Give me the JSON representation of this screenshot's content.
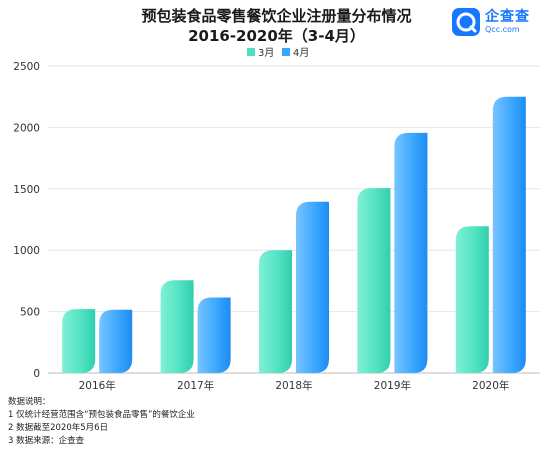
{
  "title": "预包装食品零售餐饮企业注册量分布情况",
  "subtitle": "2016-2020年（3-4月）",
  "brand": {
    "name": "企查查",
    "sub": "Qcc.com",
    "color": "#1677ff"
  },
  "colors": {
    "march": "#4fe0c1",
    "april": "#3aa6ff",
    "grid": "#e6e6e6"
  },
  "chart_data": {
    "type": "bar",
    "title": "预包装食品零售餐饮企业注册量分布情况",
    "subtitle": "2016-2020年（3-4月）",
    "categories": [
      "2016年",
      "2017年",
      "2018年",
      "2019年",
      "2020年"
    ],
    "series": [
      {
        "name": "3月",
        "values": [
          520,
          755,
          1000,
          1505,
          1195
        ]
      },
      {
        "name": "4月",
        "values": [
          515,
          615,
          1395,
          1955,
          2250
        ]
      }
    ],
    "ylim": [
      0,
      2500
    ],
    "yticks": [
      0,
      500,
      1000,
      1500,
      2000,
      2500
    ],
    "grid": true,
    "legend": "top-center"
  },
  "notes": {
    "heading": "数据说明：",
    "items": [
      "1 仅统计经营范围含“预包装食品零售”的餐饮企业",
      "2 数据截至2020年5月6日",
      "3 数据来源：企查查"
    ]
  }
}
